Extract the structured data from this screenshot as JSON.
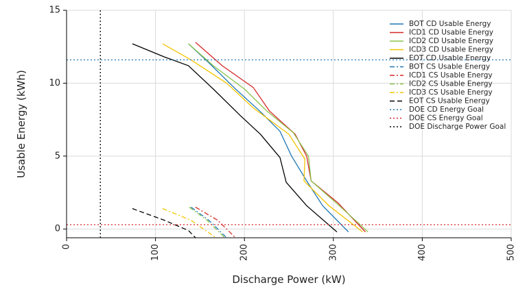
{
  "chart_data": {
    "type": "line",
    "xlabel": "Discharge Power (kW)",
    "ylabel": "Usable Energy (kWh)",
    "xlim": [
      0,
      500
    ],
    "ylim": [
      -0.6,
      15
    ],
    "xticks": [
      0,
      100,
      200,
      300,
      400,
      500
    ],
    "yticks": [
      0,
      5,
      10,
      15
    ],
    "grid": true,
    "legend_position": "top-right",
    "series": [
      {
        "name": "BOT CD Usable Energy",
        "color": "#1f77b4",
        "style": "solid",
        "x": [
          137,
          160,
          190,
          217,
          240,
          253,
          270,
          288,
          317
        ],
        "y": [
          12.7,
          11.4,
          9.6,
          8.1,
          6.7,
          5.0,
          3.3,
          1.6,
          -0.2
        ]
      },
      {
        "name": "ICD1 CD Usable Energy",
        "color": "#d62728",
        "style": "solid",
        "x": [
          145,
          175,
          210,
          228,
          257,
          270,
          275,
          305,
          336
        ],
        "y": [
          12.8,
          11.2,
          9.7,
          8.1,
          6.5,
          5.0,
          3.3,
          1.8,
          -0.2
        ]
      },
      {
        "name": "ICD2 CD Usable Energy",
        "color": "#8bc34a",
        "style": "solid",
        "x": [
          137,
          165,
          200,
          225,
          255,
          272,
          275,
          303,
          339
        ],
        "y": [
          12.7,
          11.2,
          9.6,
          8.1,
          6.6,
          5.0,
          3.3,
          1.8,
          -0.2
        ]
      },
      {
        "name": "ICD3 CD Usable Energy",
        "color": "#f2c400",
        "style": "solid",
        "x": [
          108,
          140,
          180,
          210,
          250,
          268,
          267,
          295,
          333
        ],
        "y": [
          12.7,
          11.6,
          10.0,
          8.3,
          6.5,
          4.8,
          3.3,
          1.6,
          -0.2
        ]
      },
      {
        "name": "EOT CD Usable Energy",
        "color": "#000000",
        "style": "solid",
        "x": [
          74,
          110,
          137,
          165,
          195,
          218,
          240,
          247,
          270,
          304
        ],
        "y": [
          12.7,
          11.8,
          11.2,
          9.6,
          7.8,
          6.5,
          4.9,
          3.2,
          1.6,
          -0.2
        ]
      },
      {
        "name": "BOT CS Usable Energy",
        "color": "#1f77b4",
        "style": "dashdot",
        "x": [
          140,
          160,
          180
        ],
        "y": [
          1.5,
          0.6,
          -0.6
        ]
      },
      {
        "name": "ICD1 CS Usable Energy",
        "color": "#d62728",
        "style": "dashdot",
        "x": [
          145,
          170,
          190
        ],
        "y": [
          1.5,
          0.6,
          -0.6
        ]
      },
      {
        "name": "ICD2 CS Usable Energy",
        "color": "#8bc34a",
        "style": "dashdot",
        "x": [
          138,
          158,
          178
        ],
        "y": [
          1.5,
          0.6,
          -0.6
        ]
      },
      {
        "name": "ICD3 CS Usable Energy",
        "color": "#f2c400",
        "style": "dashdot",
        "x": [
          108,
          140,
          168
        ],
        "y": [
          1.4,
          0.6,
          -0.6
        ]
      },
      {
        "name": "EOT CS Usable Energy",
        "color": "#000000",
        "style": "dashed",
        "x": [
          74,
          110,
          137,
          145
        ],
        "y": [
          1.4,
          0.6,
          -0.1,
          -0.6
        ]
      },
      {
        "name": "DOE CD Energy Goal",
        "color": "#1f77b4",
        "style": "dotted",
        "hline": 11.6
      },
      {
        "name": "DOE CS Energy Goal",
        "color": "#d62728",
        "style": "dotted",
        "hline": 0.3
      },
      {
        "name": "DOE Discharge Power Goal",
        "color": "#000000",
        "style": "dotted",
        "vline": 38
      }
    ]
  }
}
